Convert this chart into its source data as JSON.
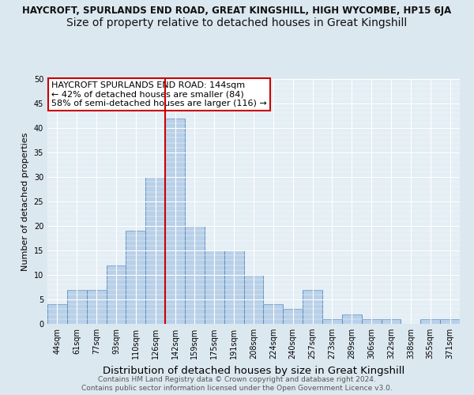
{
  "title": "HAYCROFT, SPURLANDS END ROAD, GREAT KINGSHILL, HIGH WYCOMBE, HP15 6JA",
  "subtitle": "Size of property relative to detached houses in Great Kingshill",
  "xlabel": "Distribution of detached houses by size in Great Kingshill",
  "ylabel": "Number of detached properties",
  "categories": [
    "44sqm",
    "61sqm",
    "77sqm",
    "93sqm",
    "110sqm",
    "126sqm",
    "142sqm",
    "159sqm",
    "175sqm",
    "191sqm",
    "208sqm",
    "224sqm",
    "240sqm",
    "257sqm",
    "273sqm",
    "289sqm",
    "306sqm",
    "322sqm",
    "338sqm",
    "355sqm",
    "371sqm"
  ],
  "values": [
    4,
    7,
    7,
    12,
    19,
    30,
    42,
    20,
    15,
    15,
    10,
    4,
    3,
    7,
    1,
    2,
    1,
    1,
    0,
    1,
    1
  ],
  "bar_color": "#b8d0e8",
  "bar_edge_color": "#5588bb",
  "vline_color": "#cc0000",
  "annotation_text": "HAYCROFT SPURLANDS END ROAD: 144sqm\n← 42% of detached houses are smaller (84)\n58% of semi-detached houses are larger (116) →",
  "annotation_box_color": "#ffffff",
  "annotation_box_edge_color": "#cc0000",
  "ylim": [
    0,
    50
  ],
  "yticks": [
    0,
    5,
    10,
    15,
    20,
    25,
    30,
    35,
    40,
    45,
    50
  ],
  "footer_line1": "Contains HM Land Registry data © Crown copyright and database right 2024.",
  "footer_line2": "Contains public sector information licensed under the Open Government Licence v3.0.",
  "bg_color": "#dce8f0",
  "plot_bg_color": "#e4eef5",
  "title_fontsize": 8.5,
  "subtitle_fontsize": 10,
  "xlabel_fontsize": 9.5,
  "ylabel_fontsize": 8,
  "tick_fontsize": 7,
  "annotation_fontsize": 8,
  "footer_fontsize": 6.5
}
